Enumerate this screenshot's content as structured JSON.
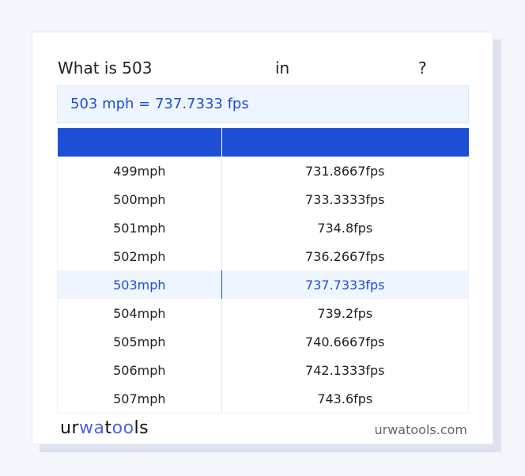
{
  "question": {
    "prefix": "What is 503",
    "middle": "in",
    "suffix": "?"
  },
  "result": "503 mph = 737.7333 fps",
  "table": {
    "headers": [
      "",
      ""
    ],
    "rows": [
      [
        "499mph",
        "731.8667fps"
      ],
      [
        "500mph",
        "733.3333fps"
      ],
      [
        "501mph",
        "734.8fps"
      ],
      [
        "502mph",
        "736.2667fps"
      ],
      [
        "503mph",
        "737.7333fps"
      ],
      [
        "504mph",
        "739.2fps"
      ],
      [
        "505mph",
        "740.6667fps"
      ],
      [
        "506mph",
        "742.1333fps"
      ],
      [
        "507mph",
        "743.6fps"
      ]
    ],
    "highlight_row": 4
  },
  "footer": {
    "logo_parts": [
      "ur",
      "wa",
      "t",
      "oo",
      "ls"
    ],
    "site": "urwatools.com"
  },
  "colors": {
    "accent": "#1d4fd5",
    "highlight_bg": "#eef5fe"
  }
}
